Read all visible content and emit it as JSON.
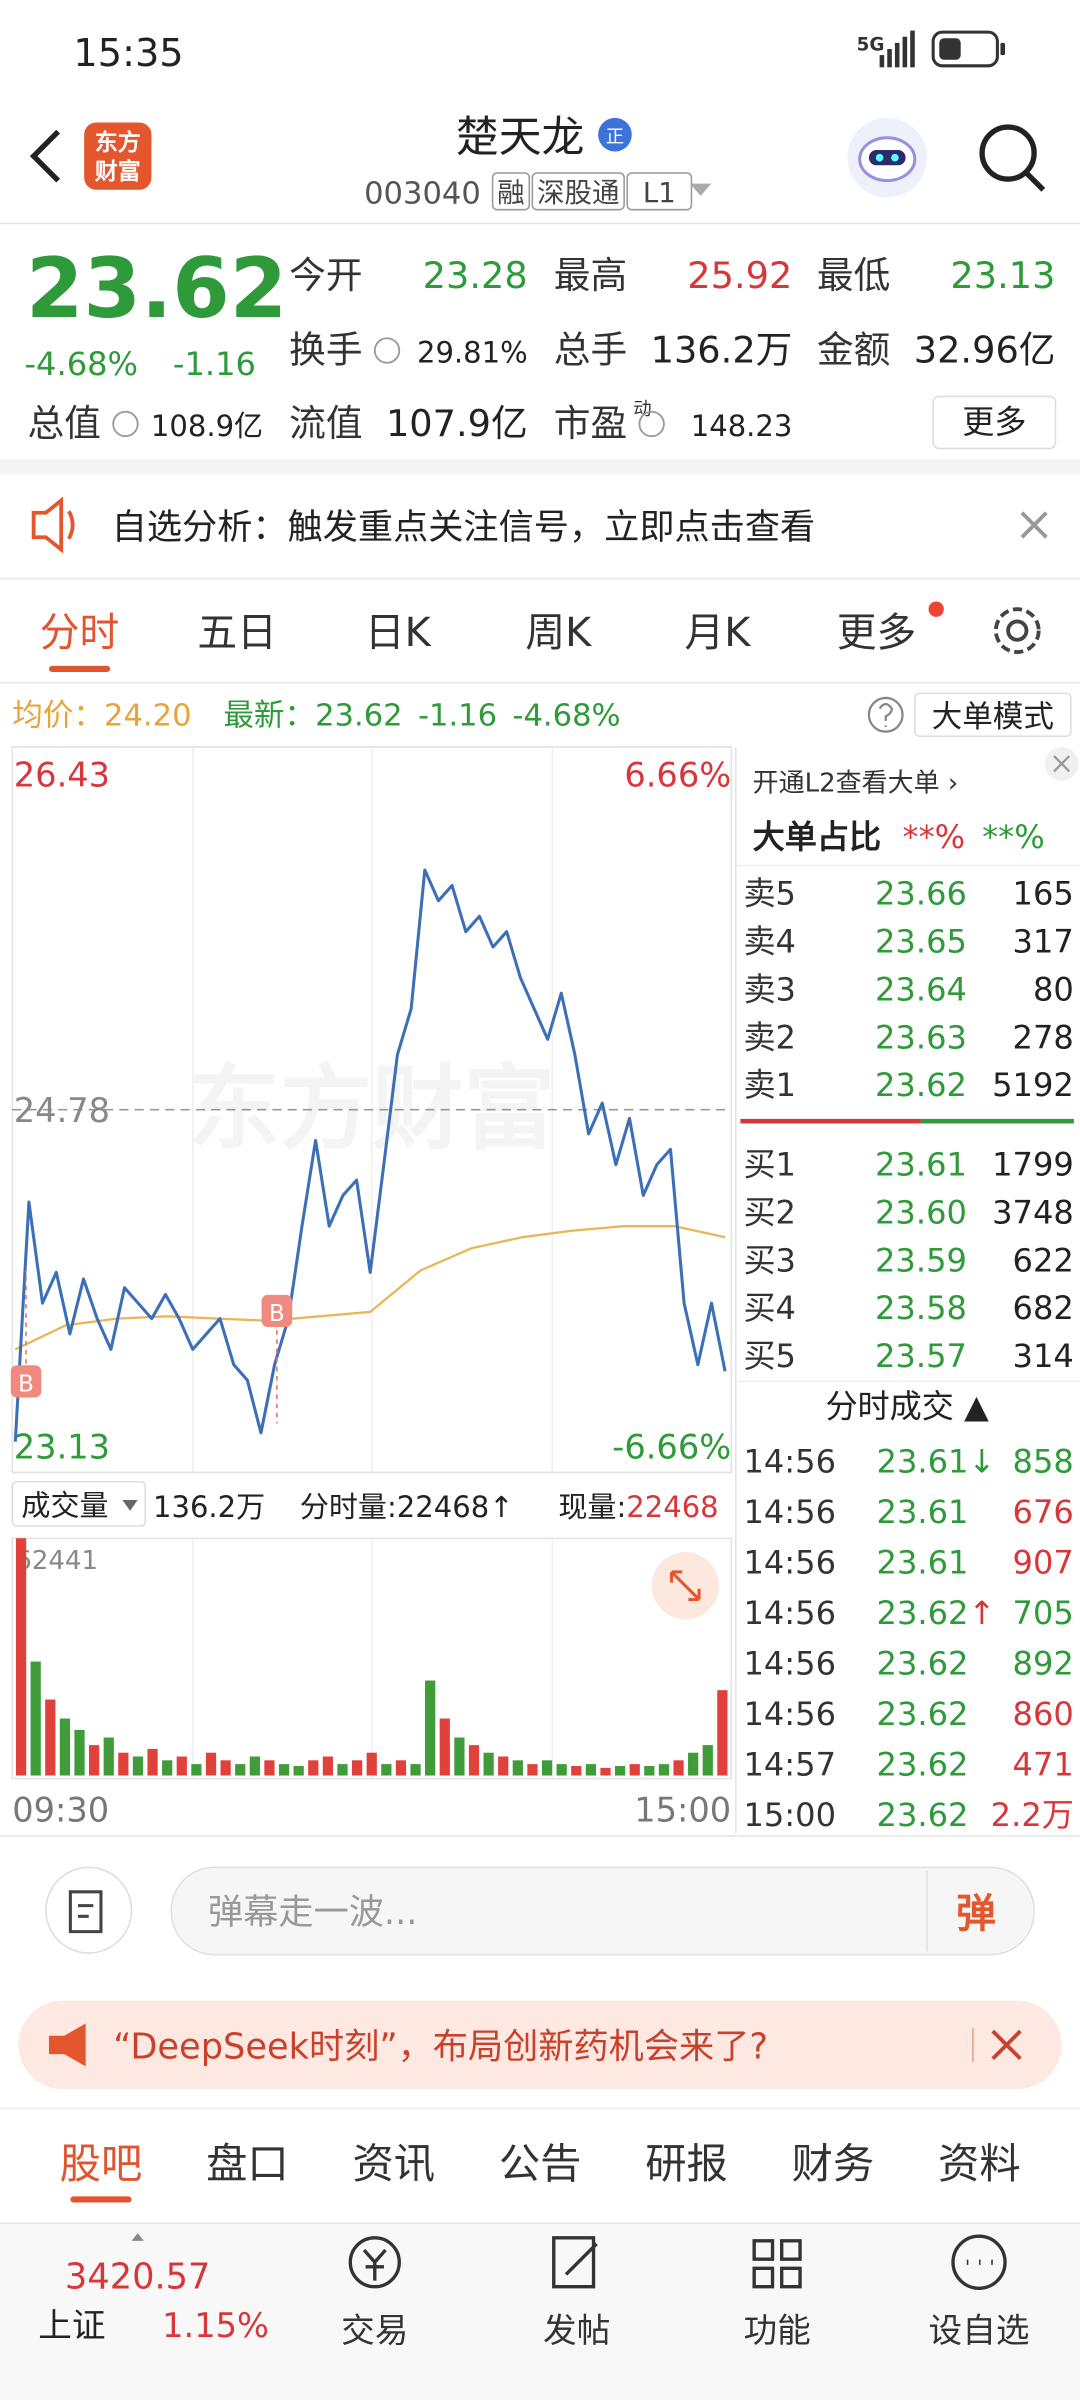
{
  "status": {
    "time": "15:35",
    "network": "5G"
  },
  "header": {
    "logo": [
      "东方",
      "财富"
    ],
    "name": "楚天龙",
    "badge": "正",
    "code": "003040",
    "tags": [
      "融",
      "深股通",
      "L1"
    ]
  },
  "quote": {
    "price": "23.62",
    "change_pct": "-4.68%",
    "change": "-1.16",
    "more": "更多",
    "fields": [
      {
        "label": "今开",
        "value": "23.28",
        "color": "#2f9a3a"
      },
      {
        "label": "最高",
        "value": "25.92",
        "color": "#d7373a"
      },
      {
        "label": "最低",
        "value": "23.13",
        "color": "#2f9a3a"
      },
      {
        "label": "换手",
        "value": "29.81%",
        "color": "#222222"
      },
      {
        "label": "总手",
        "value": "136.2万",
        "color": "#222222"
      },
      {
        "label": "金额",
        "value": "32.96亿",
        "color": "#222222"
      },
      {
        "label": "总值",
        "value": "108.9亿",
        "color": "#222222"
      },
      {
        "label": "流值",
        "value": "107.9亿",
        "color": "#222222"
      },
      {
        "label": "市盈",
        "sup": "动",
        "value": "148.23",
        "color": "#222222"
      }
    ]
  },
  "notice": "自选分析：触发重点关注信号，立即点击查看",
  "tabs": {
    "items": [
      "分时",
      "五日",
      "日K",
      "周K",
      "月K",
      "更多"
    ],
    "active": 0
  },
  "info": {
    "avg_label": "均价：",
    "avg": "24.20",
    "latest_label": "最新：",
    "latest": "23.62",
    "change": "-1.16",
    "change_pct": "-4.68%",
    "mode": "大单模式"
  },
  "intraday": {
    "ylim": [
      23.13,
      26.43
    ],
    "yticks": [
      26.43,
      24.78,
      23.13
    ],
    "pct_labels": [
      "6.66%",
      "-6.66%"
    ],
    "xlabels": [
      "09:30",
      "15:00"
    ],
    "watermark": "东方财富",
    "markers": [
      "B",
      "B"
    ],
    "price_color": "#3d6fb6",
    "avg_color": "#e9b657",
    "price": [
      23.27,
      24.36,
      23.9,
      24.04,
      23.76,
      24.01,
      23.83,
      23.69,
      23.97,
      23.9,
      23.83,
      23.94,
      23.83,
      23.69,
      23.76,
      23.83,
      23.62,
      23.55,
      23.31,
      23.62,
      23.83,
      24.25,
      24.64,
      24.25,
      24.39,
      24.46,
      24.04,
      24.53,
      25.03,
      25.24,
      25.87,
      25.73,
      25.8,
      25.59,
      25.66,
      25.52,
      25.59,
      25.38,
      25.24,
      25.1,
      25.31,
      25.03,
      24.67,
      24.81,
      24.53,
      24.74,
      24.39,
      24.53,
      24.6,
      23.9,
      23.62,
      23.9,
      23.59
    ],
    "avg": [
      23.69,
      23.8,
      23.83,
      23.84,
      23.83,
      23.82,
      23.84,
      23.86,
      24.05,
      24.15,
      24.2,
      24.23,
      24.25,
      24.25,
      24.2
    ]
  },
  "volume": {
    "label": "成交量",
    "total": "136.2万",
    "period": "分时量:22468↑",
    "now_label": "现量:",
    "now": "22468",
    "ylim": [
      0,
      62441
    ],
    "yticks": [
      62441
    ],
    "values": [
      62441,
      30000,
      20000,
      15000,
      12000,
      8000,
      10000,
      6000,
      5000,
      7000,
      4000,
      5000,
      3000,
      6000,
      4000,
      3000,
      5000,
      4000,
      3000,
      2500,
      4000,
      5000,
      3000,
      4000,
      6000,
      3000,
      4000,
      3000,
      25000,
      15000,
      10000,
      8000,
      6000,
      5000,
      4000,
      3000,
      4000,
      3000,
      2500,
      3000,
      2000,
      2500,
      3000,
      2500,
      3000,
      4000,
      6000,
      8000,
      22468
    ],
    "colors": [
      "#e0413b",
      "#3f9c38",
      "#e0413b",
      "#3f9c38",
      "#3f9c38",
      "#e0413b",
      "#3f9c38",
      "#e0413b",
      "#3f9c38",
      "#e0413b",
      "#3f9c38",
      "#e0413b",
      "#3f9c38",
      "#e0413b",
      "#e0413b",
      "#3f9c38",
      "#3f9c38",
      "#e0413b",
      "#3f9c38",
      "#3f9c38",
      "#e0413b",
      "#e0413b",
      "#3f9c38",
      "#e0413b",
      "#e0413b",
      "#3f9c38",
      "#e0413b",
      "#3f9c38",
      "#3f9c38",
      "#e0413b",
      "#3f9c38",
      "#e0413b",
      "#3f9c38",
      "#e0413b",
      "#3f9c38",
      "#e0413b",
      "#3f9c38",
      "#3f9c38",
      "#e0413b",
      "#3f9c38",
      "#e0413b",
      "#3f9c38",
      "#e0413b",
      "#3f9c38",
      "#3f9c38",
      "#e0413b",
      "#3f9c38",
      "#3f9c38",
      "#e0413b"
    ]
  },
  "orderbook": {
    "promo": "开通L2查看大单 ›",
    "ratio_label": "大单占比",
    "ratio": [
      "**%",
      "**%"
    ],
    "asks": [
      {
        "label": "卖5",
        "price": "23.66",
        "volume": "165"
      },
      {
        "label": "卖4",
        "price": "23.65",
        "volume": "317"
      },
      {
        "label": "卖3",
        "price": "23.64",
        "volume": "80"
      },
      {
        "label": "卖2",
        "price": "23.63",
        "volume": "278"
      },
      {
        "label": "卖1",
        "price": "23.62",
        "volume": "5192"
      }
    ],
    "bids": [
      {
        "label": "买1",
        "price": "23.61",
        "volume": "1799"
      },
      {
        "label": "买2",
        "price": "23.60",
        "volume": "3748"
      },
      {
        "label": "买3",
        "price": "23.59",
        "volume": "622"
      },
      {
        "label": "买4",
        "price": "23.58",
        "volume": "682"
      },
      {
        "label": "买5",
        "price": "23.57",
        "volume": "314"
      }
    ]
  },
  "trades": {
    "title": "分时成交 ▲",
    "rows": [
      {
        "time": "14:56",
        "price": "23.61",
        "arrow": "↓",
        "volume": "858",
        "color": "#2f9a3a"
      },
      {
        "time": "14:56",
        "price": "23.61",
        "volume": "676",
        "color": "#d7373a"
      },
      {
        "time": "14:56",
        "price": "23.61",
        "volume": "907",
        "color": "#d7373a"
      },
      {
        "time": "14:56",
        "price": "23.62",
        "arrow": "↑",
        "volume": "705",
        "color": "#2f9a3a"
      },
      {
        "time": "14:56",
        "price": "23.62",
        "volume": "892",
        "color": "#2f9a3a"
      },
      {
        "time": "14:56",
        "price": "23.62",
        "volume": "860",
        "color": "#d7373a"
      },
      {
        "time": "14:57",
        "price": "23.62",
        "volume": "471",
        "color": "#d7373a"
      },
      {
        "time": "15:00",
        "price": "23.62",
        "volume": "2.2万",
        "color": "#d7373a"
      }
    ]
  },
  "comment": {
    "placeholder": "弹幕走一波...",
    "button": "弹"
  },
  "banner": "“DeepSeek时刻”，布局创新药机会来了?",
  "bottom_tabs": {
    "items": [
      "股吧",
      "盘口",
      "资讯",
      "公告",
      "研报",
      "财务",
      "资料"
    ],
    "active": 0
  },
  "nav": {
    "index_value": "3420.57",
    "index_name": "上证",
    "index_change": "1.15%",
    "items": [
      "交易",
      "发帖",
      "功能",
      "设自选"
    ]
  }
}
